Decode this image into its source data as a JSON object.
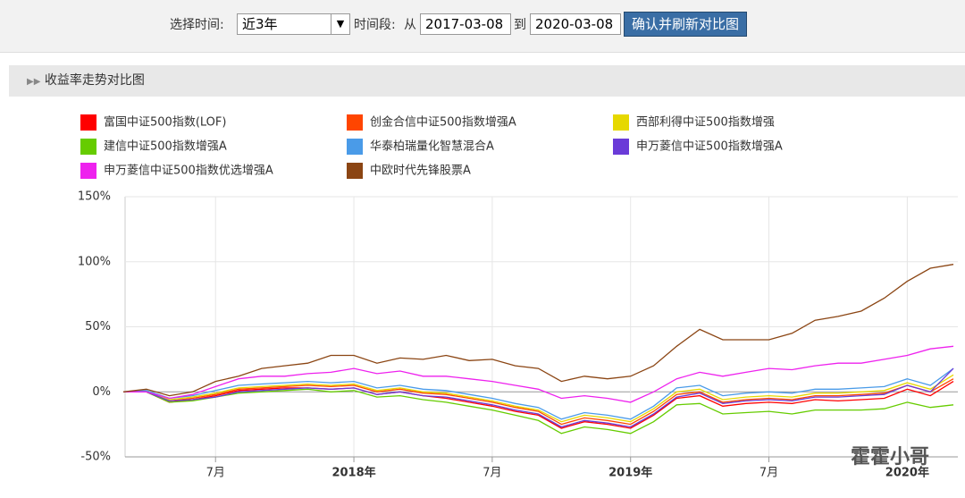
{
  "controls": {
    "time_label": "选择时间:",
    "select": "近3年",
    "period_label": "时间段:",
    "from_label": "从",
    "from": "2017-03-08",
    "to_label": "到",
    "to": "2020-03-08",
    "button": "确认并刷新对比图"
  },
  "section_title": "收益率走势对比图",
  "watermark": "霍霍小哥",
  "chart_data": {
    "type": "line",
    "x": [
      "2017-03",
      "2017-04",
      "2017-05",
      "2017-06",
      "2017-07",
      "2017-08",
      "2017-09",
      "2017-10",
      "2017-11",
      "2017-12",
      "2018-01",
      "2018-02",
      "2018-03",
      "2018-04",
      "2018-05",
      "2018-06",
      "2018-07",
      "2018-08",
      "2018-09",
      "2018-10",
      "2018-11",
      "2018-12",
      "2019-01",
      "2019-02",
      "2019-03",
      "2019-04",
      "2019-05",
      "2019-06",
      "2019-07",
      "2019-08",
      "2019-09",
      "2019-10",
      "2019-11",
      "2019-12",
      "2020-01",
      "2020-02",
      "2020-03"
    ],
    "xticks": [
      {
        "value": "2017-07",
        "label": "7月"
      },
      {
        "value": "2018-01",
        "label": "2018年"
      },
      {
        "value": "2018-07",
        "label": "7月"
      },
      {
        "value": "2019-01",
        "label": "2019年"
      },
      {
        "value": "2019-07",
        "label": "7月"
      },
      {
        "value": "2020-01",
        "label": "2020年"
      }
    ],
    "ylim": [
      -50,
      150
    ],
    "yticks": [
      {
        "value": -50,
        "label": "-50%"
      },
      {
        "value": 0,
        "label": "0%"
      },
      {
        "value": 50,
        "label": "50%"
      },
      {
        "value": 100,
        "label": "100%"
      },
      {
        "value": 150,
        "label": "150%"
      }
    ],
    "grid": true,
    "series": [
      {
        "name": "富国中证500指数(LOF)",
        "color": "#ff0000",
        "values": [
          0,
          0,
          -8,
          -6,
          -3,
          1,
          2,
          3,
          3,
          2,
          3,
          -2,
          0,
          -3,
          -5,
          -8,
          -11,
          -15,
          -18,
          -28,
          -23,
          -25,
          -28,
          -18,
          -5,
          -3,
          -11,
          -9,
          -8,
          -9,
          -6,
          -7,
          -6,
          -5,
          2,
          -3,
          8
        ]
      },
      {
        "name": "创金合信中证500指数增强A",
        "color": "#ff4500",
        "values": [
          0,
          0,
          -7,
          -5,
          -2,
          2,
          3,
          4,
          5,
          4,
          5,
          0,
          2,
          -1,
          -2,
          -5,
          -8,
          -12,
          -15,
          -25,
          -20,
          -22,
          -25,
          -15,
          -2,
          0,
          -8,
          -6,
          -5,
          -6,
          -3,
          -3,
          -2,
          -1,
          5,
          0,
          10
        ]
      },
      {
        "name": "西部利得中证500指数增强",
        "color": "#e6d800",
        "values": [
          0,
          1,
          -6,
          -4,
          -1,
          3,
          4,
          5,
          6,
          5,
          6,
          1,
          3,
          0,
          -1,
          -4,
          -7,
          -11,
          -14,
          -23,
          -18,
          -20,
          -23,
          -13,
          0,
          2,
          -6,
          -4,
          -3,
          -4,
          -1,
          -1,
          0,
          1,
          7,
          2,
          13
        ]
      },
      {
        "name": "建信中证500指数增强A",
        "color": "#66cc00",
        "values": [
          0,
          0,
          -8,
          -7,
          -4,
          -1,
          0,
          1,
          2,
          0,
          1,
          -4,
          -3,
          -6,
          -8,
          -11,
          -14,
          -18,
          -22,
          -32,
          -27,
          -29,
          -32,
          -23,
          -10,
          -9,
          -17,
          -16,
          -15,
          -17,
          -14,
          -14,
          -14,
          -13,
          -8,
          -12,
          -10
        ]
      },
      {
        "name": "华泰柏瑞量化智慧混合A",
        "color": "#4a9be8",
        "values": [
          0,
          1,
          -5,
          -3,
          1,
          5,
          6,
          7,
          8,
          7,
          8,
          3,
          5,
          2,
          1,
          -2,
          -5,
          -9,
          -12,
          -21,
          -16,
          -18,
          -21,
          -11,
          3,
          5,
          -3,
          -1,
          0,
          -1,
          2,
          2,
          3,
          4,
          10,
          5,
          18
        ]
      },
      {
        "name": "申万菱信中证500指数增强A",
        "color": "#6a3bd8",
        "values": [
          0,
          0,
          -7,
          -6,
          -4,
          0,
          1,
          2,
          3,
          2,
          3,
          -2,
          0,
          -3,
          -4,
          -7,
          -10,
          -14,
          -17,
          -27,
          -22,
          -24,
          -27,
          -17,
          -4,
          -1,
          -9,
          -7,
          -6,
          -7,
          -4,
          -4,
          -3,
          -2,
          5,
          0,
          18
        ]
      },
      {
        "name": "申万菱信中证500指数优选增强A",
        "color": "#ee22ee",
        "values": [
          0,
          0,
          -5,
          -2,
          4,
          10,
          12,
          12,
          14,
          15,
          18,
          14,
          16,
          12,
          12,
          10,
          8,
          5,
          2,
          -5,
          -3,
          -5,
          -8,
          0,
          10,
          15,
          12,
          15,
          18,
          17,
          20,
          22,
          22,
          25,
          28,
          33,
          35
        ]
      },
      {
        "name": "中欧时代先锋股票A",
        "color": "#8b4513",
        "values": [
          0,
          2,
          -3,
          0,
          8,
          12,
          18,
          20,
          22,
          28,
          28,
          22,
          26,
          25,
          28,
          24,
          25,
          20,
          18,
          8,
          12,
          10,
          12,
          20,
          35,
          48,
          40,
          40,
          40,
          45,
          55,
          58,
          62,
          72,
          85,
          95,
          98
        ]
      }
    ]
  }
}
